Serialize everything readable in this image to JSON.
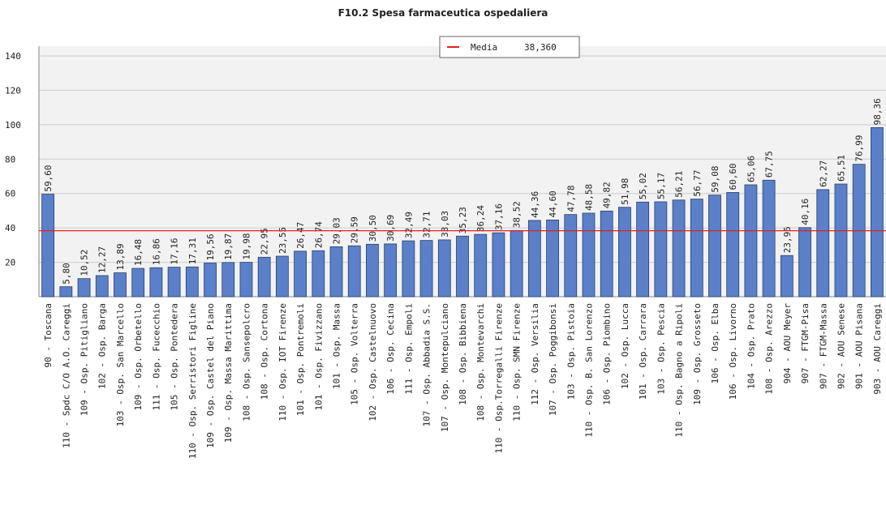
{
  "chart_data": {
    "type": "bar",
    "title": "F10.2 Spesa farmaceutica ospedaliera",
    "categories": [
      "90 - Toscana",
      "110 - Spdc C/O A.O. Careggi",
      "109 - Osp. Pitigliano",
      "102 - Osp. Barga",
      "103 - Osp. San Marcello",
      "109 - Osp. Orbetello",
      "111 - Osp. Fucecchio",
      "105 - Osp. Pontedera",
      "110 - Osp. Serristori Figline",
      "109 - Osp. Castel del Piano",
      "109 - Osp. Massa Marittima",
      "108 - Osp. Sansepolcro",
      "108 - Osp. Cortona",
      "110 - Osp. IOT Firenze",
      "101 - Osp. Pontremoli",
      "101 - Osp. Fivizzano",
      "101 - Osp. Massa",
      "105 - Osp. Volterra",
      "102 - Osp. Castelnuovo",
      "106 - Osp. Cecina",
      "111 - Osp. Empoli",
      "107 - Osp. Abbadia S.S.",
      "107 - Osp. Montepulciano",
      "108 - Osp. Bibbiena",
      "108 - Osp. Montevarchi",
      "110 - Osp.Torregalli Firenze",
      "110 - Osp. SMN Firenze",
      "112 - Osp. Versilia",
      "107 - Osp. Poggibonsi",
      "103 - Osp. Pistoia",
      "110 - Osp. B. San Lorenzo",
      "106 - Osp. Piombino",
      "102 - Osp. Lucca",
      "101 - Osp. Carrara",
      "103 - Osp. Pescia",
      "110 - Osp. Bagno a Ripoli",
      "109 - Osp. Grosseto",
      "106 - Osp. Elba",
      "106 - Osp. Livorno",
      "104 - Osp. Prato",
      "108 - Osp. Arezzo",
      "904 - AOU Meyer",
      "907 - FTGM-Pisa",
      "907 - FTGM-Massa",
      "902 - AOU Senese",
      "901 - AOU Pisana",
      "903 - AOU Careggi"
    ],
    "values": [
      59.6,
      5.8,
      10.52,
      12.27,
      13.89,
      16.48,
      16.86,
      17.16,
      17.31,
      19.56,
      19.87,
      19.98,
      22.95,
      23.55,
      26.47,
      26.74,
      29.03,
      29.59,
      30.5,
      30.69,
      32.49,
      32.71,
      33.03,
      35.23,
      36.24,
      37.16,
      38.52,
      44.36,
      44.6,
      47.78,
      48.58,
      49.82,
      51.98,
      55.02,
      55.17,
      56.21,
      56.77,
      59.08,
      60.6,
      65.06,
      67.75,
      23.95,
      40.16,
      62.27,
      65.51,
      76.99,
      98.36
    ],
    "value_labels": [
      "59,60",
      "5,80",
      "10,52",
      "12,27",
      "13,89",
      "16,48",
      "16,86",
      "17,16",
      "17,31",
      "19,56",
      "19,87",
      "19,98",
      "22,95",
      "23,55",
      "26,47",
      "26,74",
      "29,03",
      "29,59",
      "30,50",
      "30,69",
      "32,49",
      "32,71",
      "33,03",
      "35,23",
      "36,24",
      "37,16",
      "38,52",
      "44,36",
      "44,60",
      "47,78",
      "48,58",
      "49,82",
      "51,98",
      "55,02",
      "55,17",
      "56,21",
      "56,77",
      "59,08",
      "60,60",
      "65,06",
      "67,75",
      "23,95",
      "40,16",
      "62,27",
      "65,51",
      "76,99",
      "98,36"
    ],
    "color": "#5b80c9",
    "ylim": [
      0,
      140
    ],
    "yticks": [
      20,
      40,
      60,
      80,
      100,
      120,
      140
    ],
    "grid": true,
    "mean": {
      "name": "Media",
      "value": 38.36,
      "label": "38,360",
      "color": "#e02020"
    }
  }
}
